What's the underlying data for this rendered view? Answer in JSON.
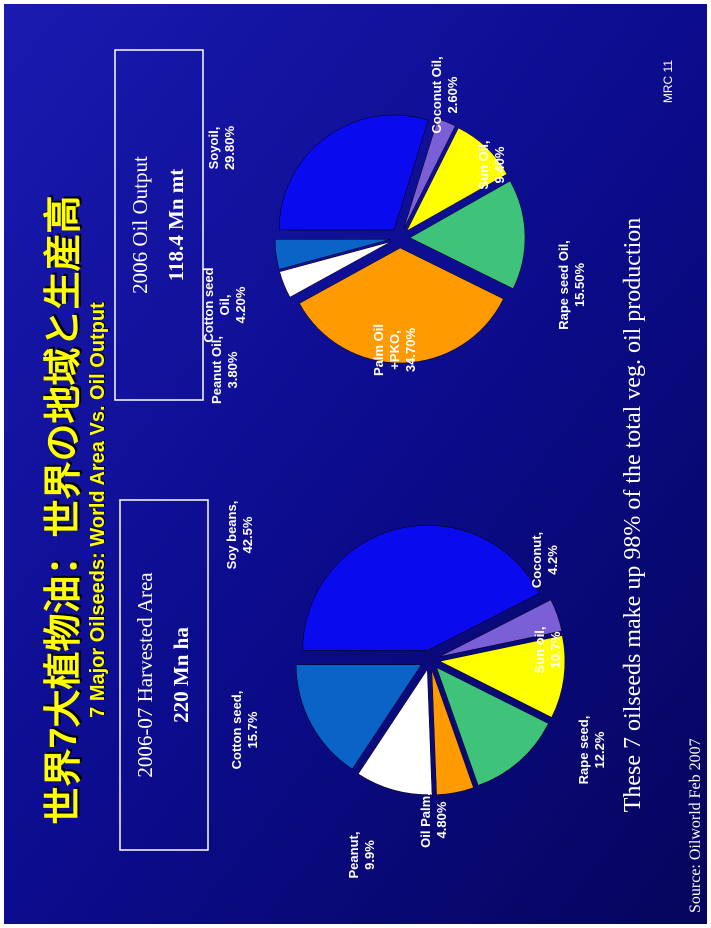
{
  "title": "世界7大植物油：世界の地域と生産高",
  "subtitle": "7 Major Oilseeds: World Area Vs. Oil Output",
  "footnote": "These 7 oilseeds make up 98% of the total veg. oil production",
  "source": "Source: Oilworld Feb 2007",
  "slide_number": "MRC 11",
  "chart_data": [
    {
      "type": "pie",
      "title": "2006-07 Harvested Area",
      "subtitle": "220 Mn ha",
      "categories": [
        "Soy beans,",
        "Coconut,",
        "Sun oil,",
        "Rape seed,",
        "Oil Palm,",
        "Peanut,",
        "Cotton seed,"
      ],
      "values": [
        42.5,
        4.2,
        10.7,
        12.2,
        4.8,
        9.9,
        15.7
      ],
      "value_labels": [
        "42.5%",
        "4.2%",
        "10.7%",
        "12.2%",
        "4.80%",
        "9.9%",
        "15.7%"
      ],
      "colors": [
        "#0a0aee",
        "#7b5fd6",
        "#ffff00",
        "#3fc27a",
        "#ff9a00",
        "#ffffff",
        "#0a64c8"
      ]
    },
    {
      "type": "pie",
      "title": "2006 Oil Output",
      "subtitle": "118.4 Mn mt",
      "categories": [
        "Soyoil,",
        "Coconut Oil,",
        "Sun Oil,",
        "Rape seed Oil,",
        "Palm Oil +PKO,",
        "Peanut Oil,",
        "Cotton seed Oil,"
      ],
      "values": [
        29.8,
        2.6,
        9.4,
        15.5,
        34.7,
        3.8,
        4.2
      ],
      "value_labels": [
        "29.80%",
        "2.60%",
        "9.40%",
        "15.50%",
        "34.70%",
        "3.80%",
        "4.20%"
      ],
      "colors": [
        "#0a0aee",
        "#7b5fd6",
        "#ffff00",
        "#3fc27a",
        "#ff9a00",
        "#ffffff",
        "#0a64c8"
      ]
    }
  ]
}
